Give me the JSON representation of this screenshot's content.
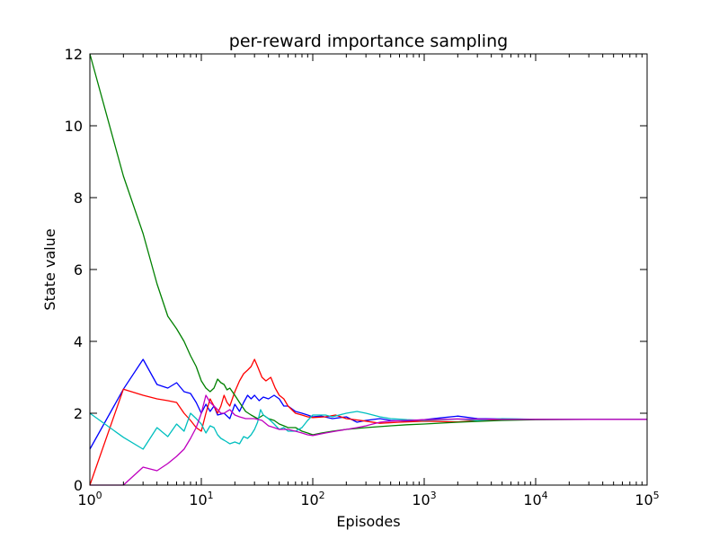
{
  "chart_data": {
    "type": "line",
    "title": "per-reward importance sampling",
    "xlabel": "Episodes",
    "ylabel": "State value",
    "xscale": "log",
    "xlim": [
      1,
      100000
    ],
    "ylim": [
      0,
      12
    ],
    "grid": false,
    "legend": "none",
    "x_ticks": [
      {
        "value": 1,
        "base": "10",
        "exp": "0"
      },
      {
        "value": 10,
        "base": "10",
        "exp": "1"
      },
      {
        "value": 100,
        "base": "10",
        "exp": "2"
      },
      {
        "value": 1000,
        "base": "10",
        "exp": "3"
      },
      {
        "value": 10000,
        "base": "10",
        "exp": "4"
      },
      {
        "value": 100000,
        "base": "10",
        "exp": "5"
      }
    ],
    "y_ticks": [
      "0",
      "2",
      "4",
      "6",
      "8",
      "10",
      "12"
    ],
    "series": [
      {
        "color": "#0000ff",
        "points": [
          [
            1,
            1.0
          ],
          [
            2,
            2.67
          ],
          [
            3,
            3.5
          ],
          [
            4,
            2.8
          ],
          [
            5,
            2.7
          ],
          [
            6,
            2.85
          ],
          [
            7,
            2.6
          ],
          [
            8,
            2.55
          ],
          [
            9,
            2.3
          ],
          [
            10,
            2.0
          ],
          [
            11,
            2.25
          ],
          [
            12,
            2.05
          ],
          [
            13,
            2.2
          ],
          [
            14,
            1.95
          ],
          [
            16,
            2.0
          ],
          [
            18,
            1.85
          ],
          [
            20,
            2.25
          ],
          [
            22,
            2.05
          ],
          [
            24,
            2.3
          ],
          [
            26,
            2.5
          ],
          [
            28,
            2.4
          ],
          [
            30,
            2.5
          ],
          [
            33,
            2.35
          ],
          [
            36,
            2.45
          ],
          [
            40,
            2.4
          ],
          [
            45,
            2.5
          ],
          [
            50,
            2.4
          ],
          [
            55,
            2.2
          ],
          [
            60,
            2.2
          ],
          [
            70,
            2.05
          ],
          [
            80,
            2.0
          ],
          [
            90,
            1.95
          ],
          [
            100,
            1.9
          ],
          [
            120,
            1.92
          ],
          [
            150,
            1.85
          ],
          [
            200,
            1.9
          ],
          [
            250,
            1.75
          ],
          [
            300,
            1.8
          ],
          [
            400,
            1.85
          ],
          [
            500,
            1.8
          ],
          [
            700,
            1.78
          ],
          [
            1000,
            1.82
          ],
          [
            1500,
            1.88
          ],
          [
            2000,
            1.92
          ],
          [
            3000,
            1.85
          ],
          [
            5000,
            1.84
          ],
          [
            10000,
            1.83
          ],
          [
            30000,
            1.83
          ],
          [
            100000,
            1.83
          ]
        ]
      },
      {
        "color": "#ff0000",
        "points": [
          [
            1,
            0.0
          ],
          [
            2,
            2.67
          ],
          [
            3,
            2.5
          ],
          [
            4,
            2.4
          ],
          [
            5,
            2.35
          ],
          [
            6,
            2.3
          ],
          [
            7,
            2.0
          ],
          [
            8,
            1.8
          ],
          [
            9,
            1.6
          ],
          [
            10,
            1.5
          ],
          [
            11,
            2.0
          ],
          [
            12,
            2.4
          ],
          [
            13,
            2.2
          ],
          [
            14,
            2.0
          ],
          [
            15,
            2.2
          ],
          [
            16,
            2.5
          ],
          [
            17,
            2.3
          ],
          [
            18,
            2.2
          ],
          [
            20,
            2.6
          ],
          [
            22,
            2.9
          ],
          [
            24,
            3.1
          ],
          [
            26,
            3.2
          ],
          [
            28,
            3.3
          ],
          [
            30,
            3.5
          ],
          [
            32,
            3.3
          ],
          [
            35,
            3.0
          ],
          [
            38,
            2.9
          ],
          [
            42,
            3.0
          ],
          [
            46,
            2.7
          ],
          [
            50,
            2.5
          ],
          [
            55,
            2.4
          ],
          [
            60,
            2.2
          ],
          [
            70,
            2.0
          ],
          [
            80,
            1.95
          ],
          [
            90,
            1.9
          ],
          [
            100,
            1.88
          ],
          [
            130,
            1.9
          ],
          [
            160,
            1.95
          ],
          [
            200,
            1.85
          ],
          [
            300,
            1.78
          ],
          [
            400,
            1.72
          ],
          [
            600,
            1.75
          ],
          [
            1000,
            1.78
          ],
          [
            2000,
            1.76
          ],
          [
            3000,
            1.8
          ],
          [
            5000,
            1.82
          ],
          [
            10000,
            1.83
          ],
          [
            30000,
            1.83
          ],
          [
            100000,
            1.83
          ]
        ]
      },
      {
        "color": "#008000",
        "points": [
          [
            1,
            12.0
          ],
          [
            2,
            8.6
          ],
          [
            3,
            7.0
          ],
          [
            4,
            5.6
          ],
          [
            5,
            4.7
          ],
          [
            6,
            4.35
          ],
          [
            7,
            4.0
          ],
          [
            8,
            3.6
          ],
          [
            9,
            3.3
          ],
          [
            10,
            2.9
          ],
          [
            11,
            2.7
          ],
          [
            12,
            2.6
          ],
          [
            13,
            2.7
          ],
          [
            14,
            2.95
          ],
          [
            15,
            2.85
          ],
          [
            16,
            2.8
          ],
          [
            17,
            2.65
          ],
          [
            18,
            2.7
          ],
          [
            20,
            2.5
          ],
          [
            22,
            2.3
          ],
          [
            25,
            2.05
          ],
          [
            28,
            1.95
          ],
          [
            32,
            1.85
          ],
          [
            36,
            1.95
          ],
          [
            40,
            1.85
          ],
          [
            45,
            1.8
          ],
          [
            50,
            1.7
          ],
          [
            55,
            1.65
          ],
          [
            60,
            1.6
          ],
          [
            70,
            1.6
          ],
          [
            80,
            1.5
          ],
          [
            90,
            1.45
          ],
          [
            100,
            1.4
          ],
          [
            120,
            1.45
          ],
          [
            150,
            1.5
          ],
          [
            200,
            1.55
          ],
          [
            300,
            1.6
          ],
          [
            500,
            1.65
          ],
          [
            700,
            1.68
          ],
          [
            1000,
            1.7
          ],
          [
            2000,
            1.75
          ],
          [
            5000,
            1.8
          ],
          [
            10000,
            1.82
          ],
          [
            30000,
            1.83
          ],
          [
            100000,
            1.83
          ]
        ]
      },
      {
        "color": "#00bfbf",
        "points": [
          [
            1,
            2.0
          ],
          [
            2,
            1.33
          ],
          [
            3,
            1.0
          ],
          [
            4,
            1.6
          ],
          [
            5,
            1.35
          ],
          [
            6,
            1.7
          ],
          [
            7,
            1.5
          ],
          [
            8,
            2.0
          ],
          [
            9,
            1.85
          ],
          [
            10,
            1.7
          ],
          [
            11,
            1.45
          ],
          [
            12,
            1.65
          ],
          [
            13,
            1.6
          ],
          [
            14,
            1.4
          ],
          [
            15,
            1.3
          ],
          [
            16,
            1.25
          ],
          [
            17,
            1.2
          ],
          [
            18,
            1.15
          ],
          [
            20,
            1.2
          ],
          [
            22,
            1.15
          ],
          [
            24,
            1.35
          ],
          [
            26,
            1.3
          ],
          [
            28,
            1.4
          ],
          [
            30,
            1.55
          ],
          [
            32,
            1.75
          ],
          [
            34,
            2.1
          ],
          [
            36,
            1.95
          ],
          [
            40,
            1.85
          ],
          [
            45,
            1.7
          ],
          [
            50,
            1.55
          ],
          [
            55,
            1.6
          ],
          [
            60,
            1.5
          ],
          [
            70,
            1.5
          ],
          [
            80,
            1.6
          ],
          [
            90,
            1.8
          ],
          [
            100,
            1.95
          ],
          [
            130,
            1.95
          ],
          [
            150,
            1.9
          ],
          [
            200,
            2.0
          ],
          [
            250,
            2.05
          ],
          [
            300,
            2.0
          ],
          [
            400,
            1.9
          ],
          [
            500,
            1.85
          ],
          [
            700,
            1.82
          ],
          [
            1000,
            1.8
          ],
          [
            2000,
            1.84
          ],
          [
            3000,
            1.8
          ],
          [
            5000,
            1.85
          ],
          [
            10000,
            1.83
          ],
          [
            30000,
            1.83
          ],
          [
            100000,
            1.83
          ]
        ]
      },
      {
        "color": "#bf00bf",
        "points": [
          [
            1,
            0.0
          ],
          [
            2,
            0.0
          ],
          [
            3,
            0.5
          ],
          [
            4,
            0.4
          ],
          [
            5,
            0.6
          ],
          [
            6,
            0.8
          ],
          [
            7,
            1.0
          ],
          [
            8,
            1.3
          ],
          [
            9,
            1.6
          ],
          [
            10,
            2.0
          ],
          [
            11,
            2.5
          ],
          [
            12,
            2.3
          ],
          [
            13,
            2.2
          ],
          [
            14,
            2.1
          ],
          [
            15,
            2.0
          ],
          [
            16,
            2.0
          ],
          [
            18,
            2.1
          ],
          [
            20,
            1.95
          ],
          [
            22,
            1.9
          ],
          [
            25,
            1.85
          ],
          [
            30,
            1.85
          ],
          [
            35,
            1.8
          ],
          [
            40,
            1.65
          ],
          [
            45,
            1.6
          ],
          [
            50,
            1.55
          ],
          [
            60,
            1.55
          ],
          [
            70,
            1.5
          ],
          [
            80,
            1.45
          ],
          [
            90,
            1.4
          ],
          [
            100,
            1.38
          ],
          [
            130,
            1.45
          ],
          [
            160,
            1.5
          ],
          [
            200,
            1.55
          ],
          [
            250,
            1.6
          ],
          [
            300,
            1.65
          ],
          [
            400,
            1.75
          ],
          [
            500,
            1.78
          ],
          [
            700,
            1.8
          ],
          [
            1000,
            1.82
          ],
          [
            2000,
            1.84
          ],
          [
            5000,
            1.83
          ],
          [
            10000,
            1.83
          ],
          [
            30000,
            1.83
          ],
          [
            100000,
            1.83
          ]
        ]
      }
    ]
  }
}
